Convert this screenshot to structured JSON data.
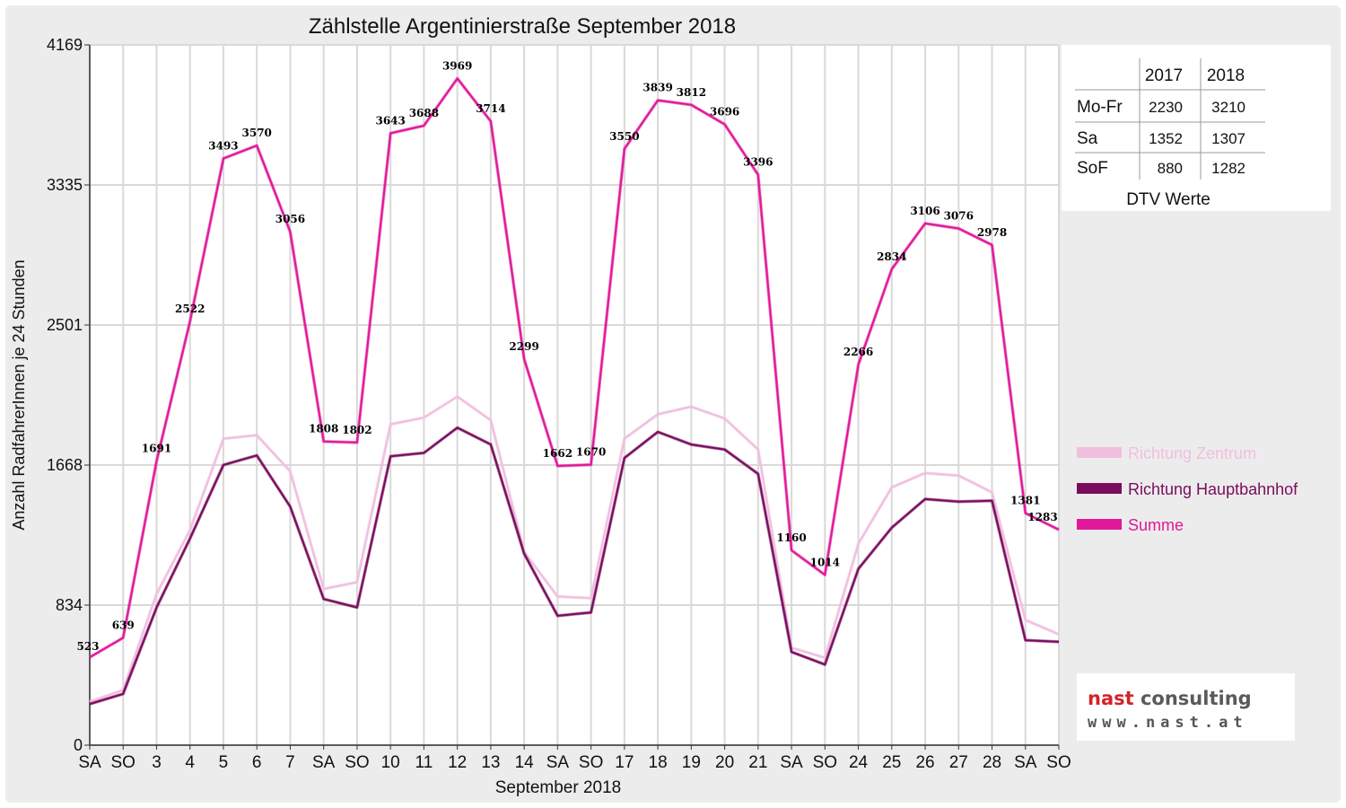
{
  "chart_data": {
    "type": "line",
    "title": "Zählstelle Argentinierstraße September 2018",
    "xlabel": "September 2018",
    "ylabel": "Anzahl RadfahrerInnen je 24 Stunden",
    "ylim": [
      0,
      4169
    ],
    "yticks": [
      "4169",
      "3335",
      "2501",
      "1668",
      "834",
      "0"
    ],
    "categories": [
      "SA",
      "SO",
      "3",
      "4",
      "5",
      "6",
      "7",
      "SA",
      "SO",
      "10",
      "11",
      "12",
      "13",
      "14",
      "SA",
      "SO",
      "17",
      "18",
      "19",
      "20",
      "21",
      "SA",
      "SO",
      "24",
      "25",
      "26",
      "27",
      "28",
      "SA",
      "SO"
    ],
    "weekend_red": [
      1,
      8,
      15,
      22,
      29
    ],
    "grid": true,
    "legend_position": "right",
    "series": [
      {
        "name": "Richtung Zentrum",
        "color": "#f0bfe0",
        "values": [
          258,
          328,
          900,
          1280,
          1825,
          1845,
          1630,
          930,
          970,
          1910,
          1950,
          2075,
          1935,
          1150,
          885,
          875,
          1825,
          1970,
          2015,
          1945,
          1760,
          580,
          520,
          1200,
          1535,
          1620,
          1605,
          1505,
          745,
          660
        ]
      },
      {
        "name": "Richtung Hauptbahnhof",
        "color": "#7a0c5e",
        "values": [
          245,
          305,
          820,
          1230,
          1668,
          1725,
          1420,
          870,
          820,
          1720,
          1740,
          1890,
          1790,
          1140,
          770,
          790,
          1710,
          1865,
          1790,
          1760,
          1615,
          555,
          480,
          1050,
          1295,
          1465,
          1450,
          1455,
          625,
          615
        ]
      },
      {
        "name": "Summe",
        "color": "#e0189a",
        "values": [
          523,
          639,
          1691,
          2522,
          3493,
          3570,
          3056,
          1808,
          1802,
          3643,
          3688,
          3969,
          3714,
          2299,
          1662,
          1670,
          3550,
          3839,
          3812,
          3696,
          3396,
          1160,
          1014,
          2266,
          2834,
          3106,
          3076,
          2978,
          1381,
          1283
        ]
      }
    ],
    "data_labels": [
      "523",
      "639",
      "1691",
      "2522",
      "3493",
      "3570",
      "3056",
      "1808",
      "1802",
      "3643",
      "3688",
      "3969",
      "3714",
      "2299",
      "1662",
      "1670",
      "3550",
      "3839",
      "3812",
      "3696",
      "3396",
      "1160",
      "1014",
      "2266",
      "2834",
      "3106",
      "3076",
      "2978",
      "1381",
      "1283"
    ]
  },
  "dtv_table": {
    "headers": [
      "",
      "2017",
      "2018"
    ],
    "rows": [
      {
        "label": "Mo-Fr",
        "v2017": "2230",
        "v2018": "3210"
      },
      {
        "label": "Sa",
        "v2017": "1352",
        "v2018": "1307"
      },
      {
        "label": "SoF",
        "v2017": "880",
        "v2018": "1282"
      }
    ],
    "caption": "DTV Werte"
  },
  "logo": {
    "line1_part1": "nast",
    "line1_part2": " consulting",
    "line2": "www.nast.at",
    "red": "#d2232a",
    "gray": "#5a5a5a"
  }
}
